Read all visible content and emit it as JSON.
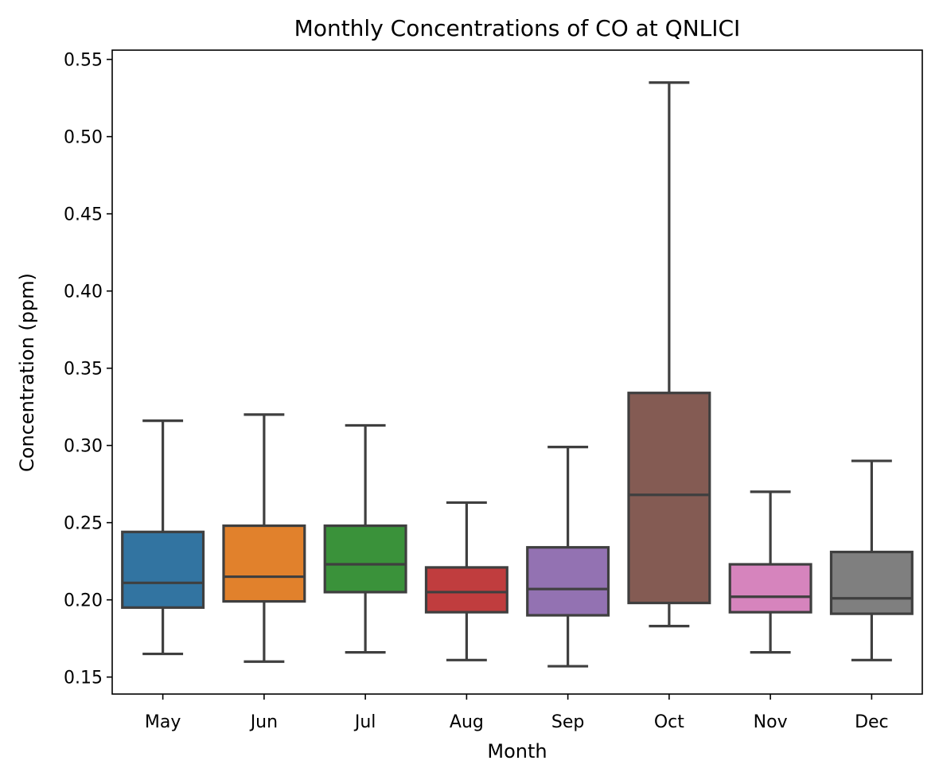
{
  "chart_data": {
    "type": "box",
    "title": "Monthly Concentrations of CO at QNLICI",
    "xlabel": "Month",
    "ylabel": "Concentration (ppm)",
    "ylim": [
      0.139,
      0.556
    ],
    "yticks": [
      "0.15",
      "0.20",
      "0.25",
      "0.30",
      "0.35",
      "0.40",
      "0.45",
      "0.50",
      "0.55"
    ],
    "ytick_values": [
      0.15,
      0.2,
      0.25,
      0.3,
      0.35,
      0.4,
      0.45,
      0.5,
      0.55
    ],
    "grid": false,
    "legend": "none",
    "categories": [
      "May",
      "Jun",
      "Jul",
      "Aug",
      "Sep",
      "Oct",
      "Nov",
      "Dec"
    ],
    "boxes": [
      {
        "category": "May",
        "whisker_low": 0.165,
        "q1": 0.195,
        "median": 0.211,
        "q3": 0.244,
        "whisker_high": 0.316,
        "color": "#3274a1"
      },
      {
        "category": "Jun",
        "whisker_low": 0.16,
        "q1": 0.199,
        "median": 0.215,
        "q3": 0.248,
        "whisker_high": 0.32,
        "color": "#e1812c"
      },
      {
        "category": "Jul",
        "whisker_low": 0.166,
        "q1": 0.205,
        "median": 0.223,
        "q3": 0.248,
        "whisker_high": 0.313,
        "color": "#3a923a"
      },
      {
        "category": "Aug",
        "whisker_low": 0.161,
        "q1": 0.192,
        "median": 0.205,
        "q3": 0.221,
        "whisker_high": 0.263,
        "color": "#c03d3e"
      },
      {
        "category": "Sep",
        "whisker_low": 0.157,
        "q1": 0.19,
        "median": 0.207,
        "q3": 0.234,
        "whisker_high": 0.299,
        "color": "#9372b2"
      },
      {
        "category": "Oct",
        "whisker_low": 0.183,
        "q1": 0.198,
        "median": 0.268,
        "q3": 0.334,
        "whisker_high": 0.535,
        "color": "#845b53"
      },
      {
        "category": "Nov",
        "whisker_low": 0.166,
        "q1": 0.192,
        "median": 0.202,
        "q3": 0.223,
        "whisker_high": 0.27,
        "color": "#d684bd"
      },
      {
        "category": "Dec",
        "whisker_low": 0.161,
        "q1": 0.191,
        "median": 0.201,
        "q3": 0.231,
        "whisker_high": 0.29,
        "color": "#7f7f7f"
      }
    ],
    "line_color": "#3f3f3f"
  }
}
